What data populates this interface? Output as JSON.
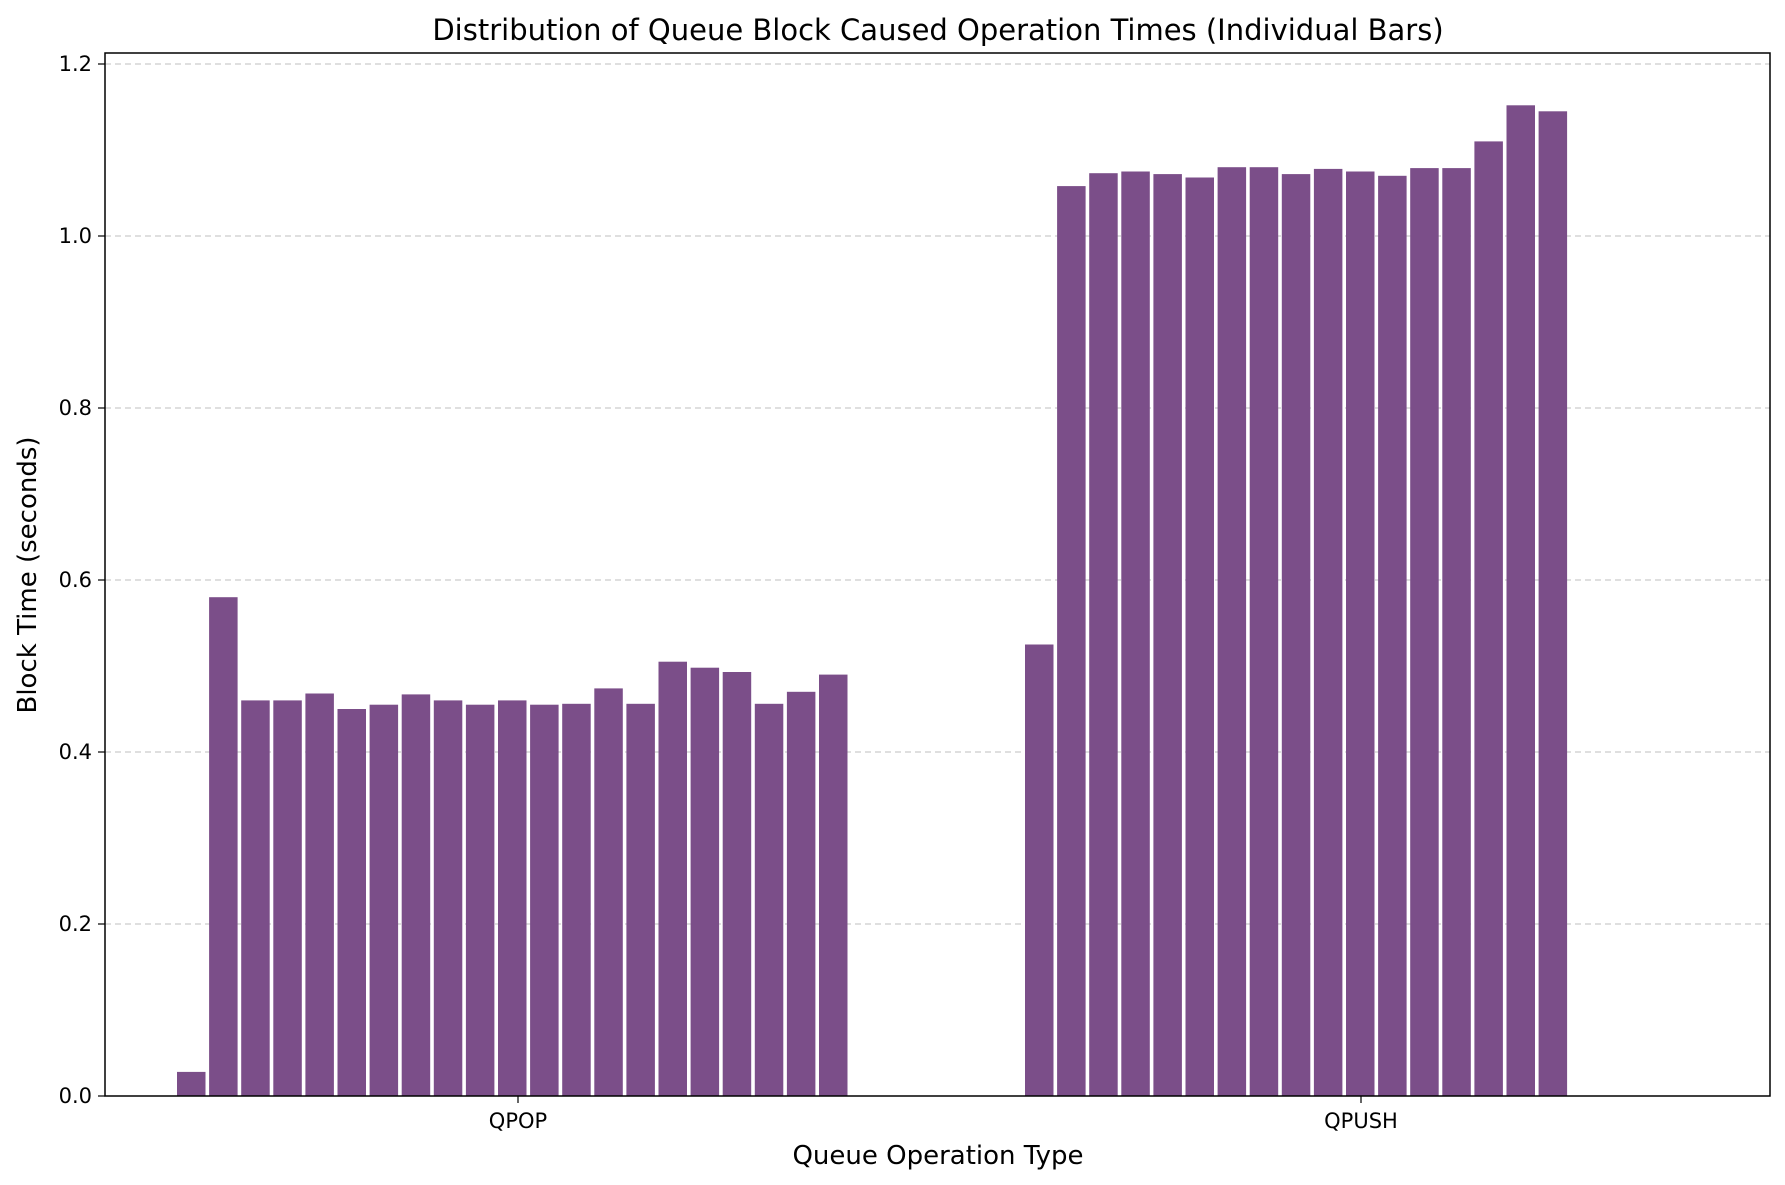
{
  "colors": {
    "bar": "#7b4e89",
    "grid": "#cccccc",
    "axis": "#000000",
    "background": "#ffffff"
  },
  "chart_data": {
    "type": "bar",
    "title": "Distribution of Queue Block Caused Operation Times (Individual Bars)",
    "xlabel": "Queue Operation Type",
    "ylabel": "Block Time (seconds)",
    "ylim": [
      0,
      1.2
    ],
    "yticks": [
      "0.0",
      "0.2",
      "0.4",
      "0.6",
      "0.8",
      "1.0",
      "1.2"
    ],
    "grid": "y-dashed",
    "legend": "none",
    "categories": [
      "QPOP",
      "QPUSH"
    ],
    "groups": [
      {
        "category": "QPOP",
        "values": [
          0.028,
          0.58,
          0.46,
          0.46,
          0.468,
          0.45,
          0.455,
          0.467,
          0.46,
          0.455,
          0.46,
          0.455,
          0.456,
          0.474,
          0.456,
          0.505,
          0.498,
          0.493,
          0.456,
          0.47,
          0.49
        ]
      },
      {
        "category": "QPUSH",
        "values": [
          0.525,
          1.058,
          1.073,
          1.075,
          1.072,
          1.068,
          1.08,
          1.08,
          1.072,
          1.078,
          1.075,
          1.07,
          1.079,
          1.079,
          1.11,
          1.152,
          1.145
        ]
      }
    ]
  }
}
